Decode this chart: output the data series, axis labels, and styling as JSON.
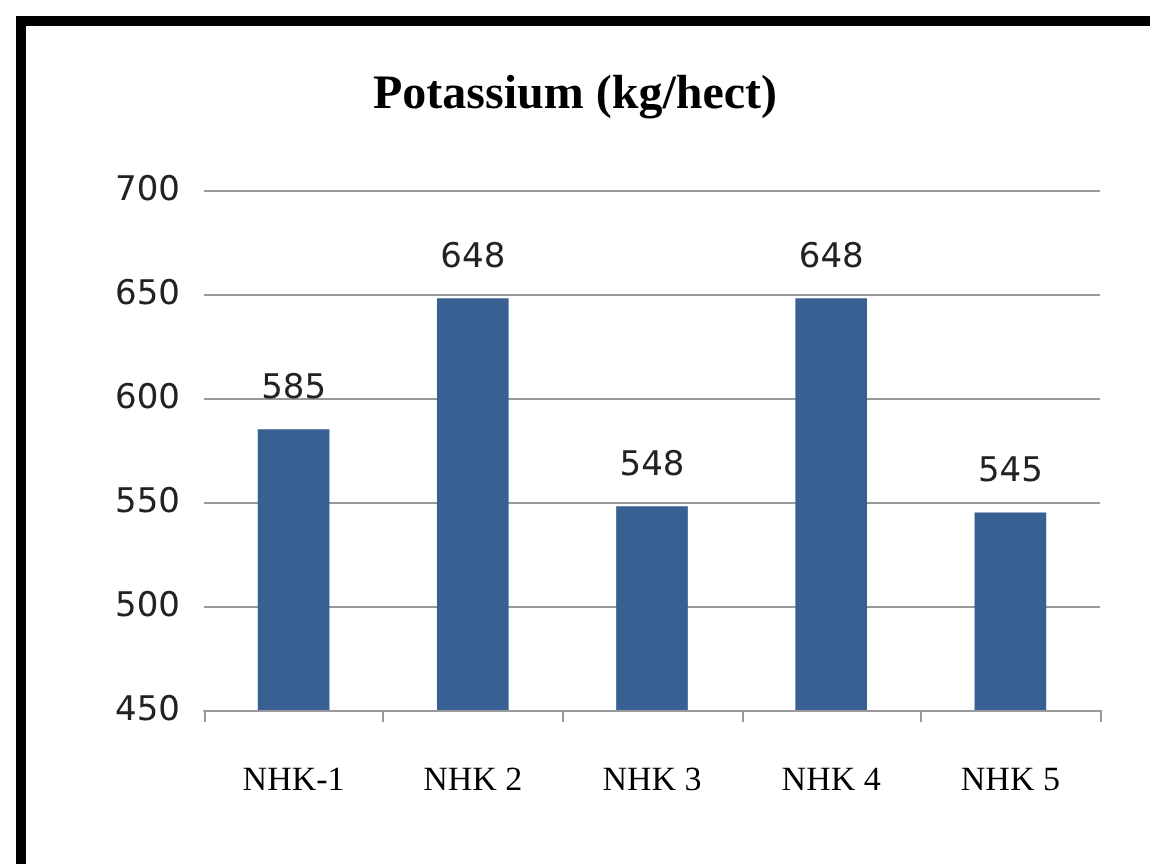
{
  "chart_data": {
    "type": "bar",
    "title": "Potassium (kg/hect)",
    "categories": [
      "NHK-1",
      "NHK 2",
      "NHK 3",
      "NHK 4",
      "NHK 5"
    ],
    "values": [
      585,
      648,
      548,
      648,
      545
    ],
    "color": "#386092",
    "ylim": [
      450,
      700
    ],
    "yticks": [
      450,
      500,
      550,
      600,
      650,
      700
    ],
    "grid": "y",
    "data_labels": true
  }
}
